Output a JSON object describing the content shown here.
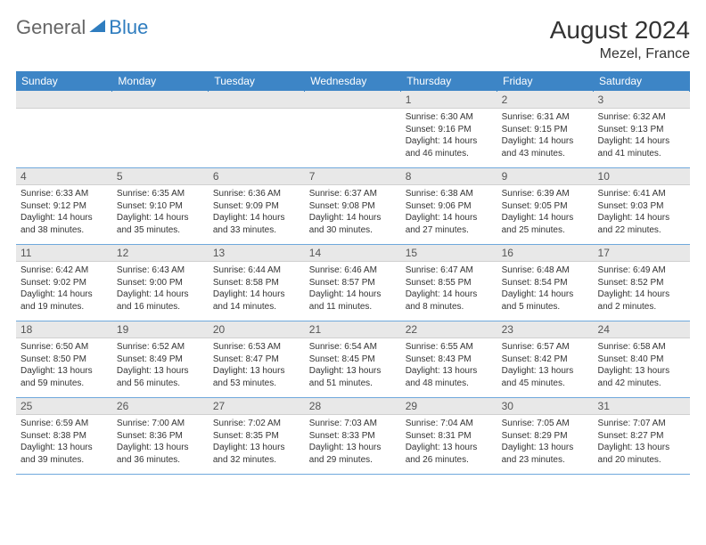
{
  "brand": {
    "part1": "General",
    "part2": "Blue"
  },
  "title": "August 2024",
  "location": "Mezel, France",
  "colors": {
    "header_bg": "#3d85c6",
    "header_text": "#ffffff",
    "daynum_bg": "#e8e8e8",
    "row_border": "#6fa8dc",
    "body_text": "#333333",
    "brand_gray": "#666666",
    "brand_blue": "#2f7dbf"
  },
  "weekdays": [
    "Sunday",
    "Monday",
    "Tuesday",
    "Wednesday",
    "Thursday",
    "Friday",
    "Saturday"
  ],
  "grid": [
    [
      null,
      null,
      null,
      null,
      {
        "n": "1",
        "sr": "6:30 AM",
        "ss": "9:16 PM",
        "dl": "14 hours and 46 minutes."
      },
      {
        "n": "2",
        "sr": "6:31 AM",
        "ss": "9:15 PM",
        "dl": "14 hours and 43 minutes."
      },
      {
        "n": "3",
        "sr": "6:32 AM",
        "ss": "9:13 PM",
        "dl": "14 hours and 41 minutes."
      }
    ],
    [
      {
        "n": "4",
        "sr": "6:33 AM",
        "ss": "9:12 PM",
        "dl": "14 hours and 38 minutes."
      },
      {
        "n": "5",
        "sr": "6:35 AM",
        "ss": "9:10 PM",
        "dl": "14 hours and 35 minutes."
      },
      {
        "n": "6",
        "sr": "6:36 AM",
        "ss": "9:09 PM",
        "dl": "14 hours and 33 minutes."
      },
      {
        "n": "7",
        "sr": "6:37 AM",
        "ss": "9:08 PM",
        "dl": "14 hours and 30 minutes."
      },
      {
        "n": "8",
        "sr": "6:38 AM",
        "ss": "9:06 PM",
        "dl": "14 hours and 27 minutes."
      },
      {
        "n": "9",
        "sr": "6:39 AM",
        "ss": "9:05 PM",
        "dl": "14 hours and 25 minutes."
      },
      {
        "n": "10",
        "sr": "6:41 AM",
        "ss": "9:03 PM",
        "dl": "14 hours and 22 minutes."
      }
    ],
    [
      {
        "n": "11",
        "sr": "6:42 AM",
        "ss": "9:02 PM",
        "dl": "14 hours and 19 minutes."
      },
      {
        "n": "12",
        "sr": "6:43 AM",
        "ss": "9:00 PM",
        "dl": "14 hours and 16 minutes."
      },
      {
        "n": "13",
        "sr": "6:44 AM",
        "ss": "8:58 PM",
        "dl": "14 hours and 14 minutes."
      },
      {
        "n": "14",
        "sr": "6:46 AM",
        "ss": "8:57 PM",
        "dl": "14 hours and 11 minutes."
      },
      {
        "n": "15",
        "sr": "6:47 AM",
        "ss": "8:55 PM",
        "dl": "14 hours and 8 minutes."
      },
      {
        "n": "16",
        "sr": "6:48 AM",
        "ss": "8:54 PM",
        "dl": "14 hours and 5 minutes."
      },
      {
        "n": "17",
        "sr": "6:49 AM",
        "ss": "8:52 PM",
        "dl": "14 hours and 2 minutes."
      }
    ],
    [
      {
        "n": "18",
        "sr": "6:50 AM",
        "ss": "8:50 PM",
        "dl": "13 hours and 59 minutes."
      },
      {
        "n": "19",
        "sr": "6:52 AM",
        "ss": "8:49 PM",
        "dl": "13 hours and 56 minutes."
      },
      {
        "n": "20",
        "sr": "6:53 AM",
        "ss": "8:47 PM",
        "dl": "13 hours and 53 minutes."
      },
      {
        "n": "21",
        "sr": "6:54 AM",
        "ss": "8:45 PM",
        "dl": "13 hours and 51 minutes."
      },
      {
        "n": "22",
        "sr": "6:55 AM",
        "ss": "8:43 PM",
        "dl": "13 hours and 48 minutes."
      },
      {
        "n": "23",
        "sr": "6:57 AM",
        "ss": "8:42 PM",
        "dl": "13 hours and 45 minutes."
      },
      {
        "n": "24",
        "sr": "6:58 AM",
        "ss": "8:40 PM",
        "dl": "13 hours and 42 minutes."
      }
    ],
    [
      {
        "n": "25",
        "sr": "6:59 AM",
        "ss": "8:38 PM",
        "dl": "13 hours and 39 minutes."
      },
      {
        "n": "26",
        "sr": "7:00 AM",
        "ss": "8:36 PM",
        "dl": "13 hours and 36 minutes."
      },
      {
        "n": "27",
        "sr": "7:02 AM",
        "ss": "8:35 PM",
        "dl": "13 hours and 32 minutes."
      },
      {
        "n": "28",
        "sr": "7:03 AM",
        "ss": "8:33 PM",
        "dl": "13 hours and 29 minutes."
      },
      {
        "n": "29",
        "sr": "7:04 AM",
        "ss": "8:31 PM",
        "dl": "13 hours and 26 minutes."
      },
      {
        "n": "30",
        "sr": "7:05 AM",
        "ss": "8:29 PM",
        "dl": "13 hours and 23 minutes."
      },
      {
        "n": "31",
        "sr": "7:07 AM",
        "ss": "8:27 PM",
        "dl": "13 hours and 20 minutes."
      }
    ]
  ],
  "labels": {
    "sunrise": "Sunrise:",
    "sunset": "Sunset:",
    "daylight": "Daylight:"
  }
}
